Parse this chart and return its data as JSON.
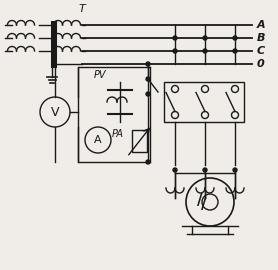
{
  "bg_color": "#f0ede8",
  "line_color": "#1a1a1a",
  "label_A": "A",
  "label_B": "B",
  "label_C": "C",
  "label_D": "0",
  "label_T": "T",
  "label_V": "V",
  "label_PV": "PV",
  "label_A_meter": "A",
  "label_PA": "PA",
  "figsize": [
    2.78,
    2.7
  ],
  "dpi": 100
}
